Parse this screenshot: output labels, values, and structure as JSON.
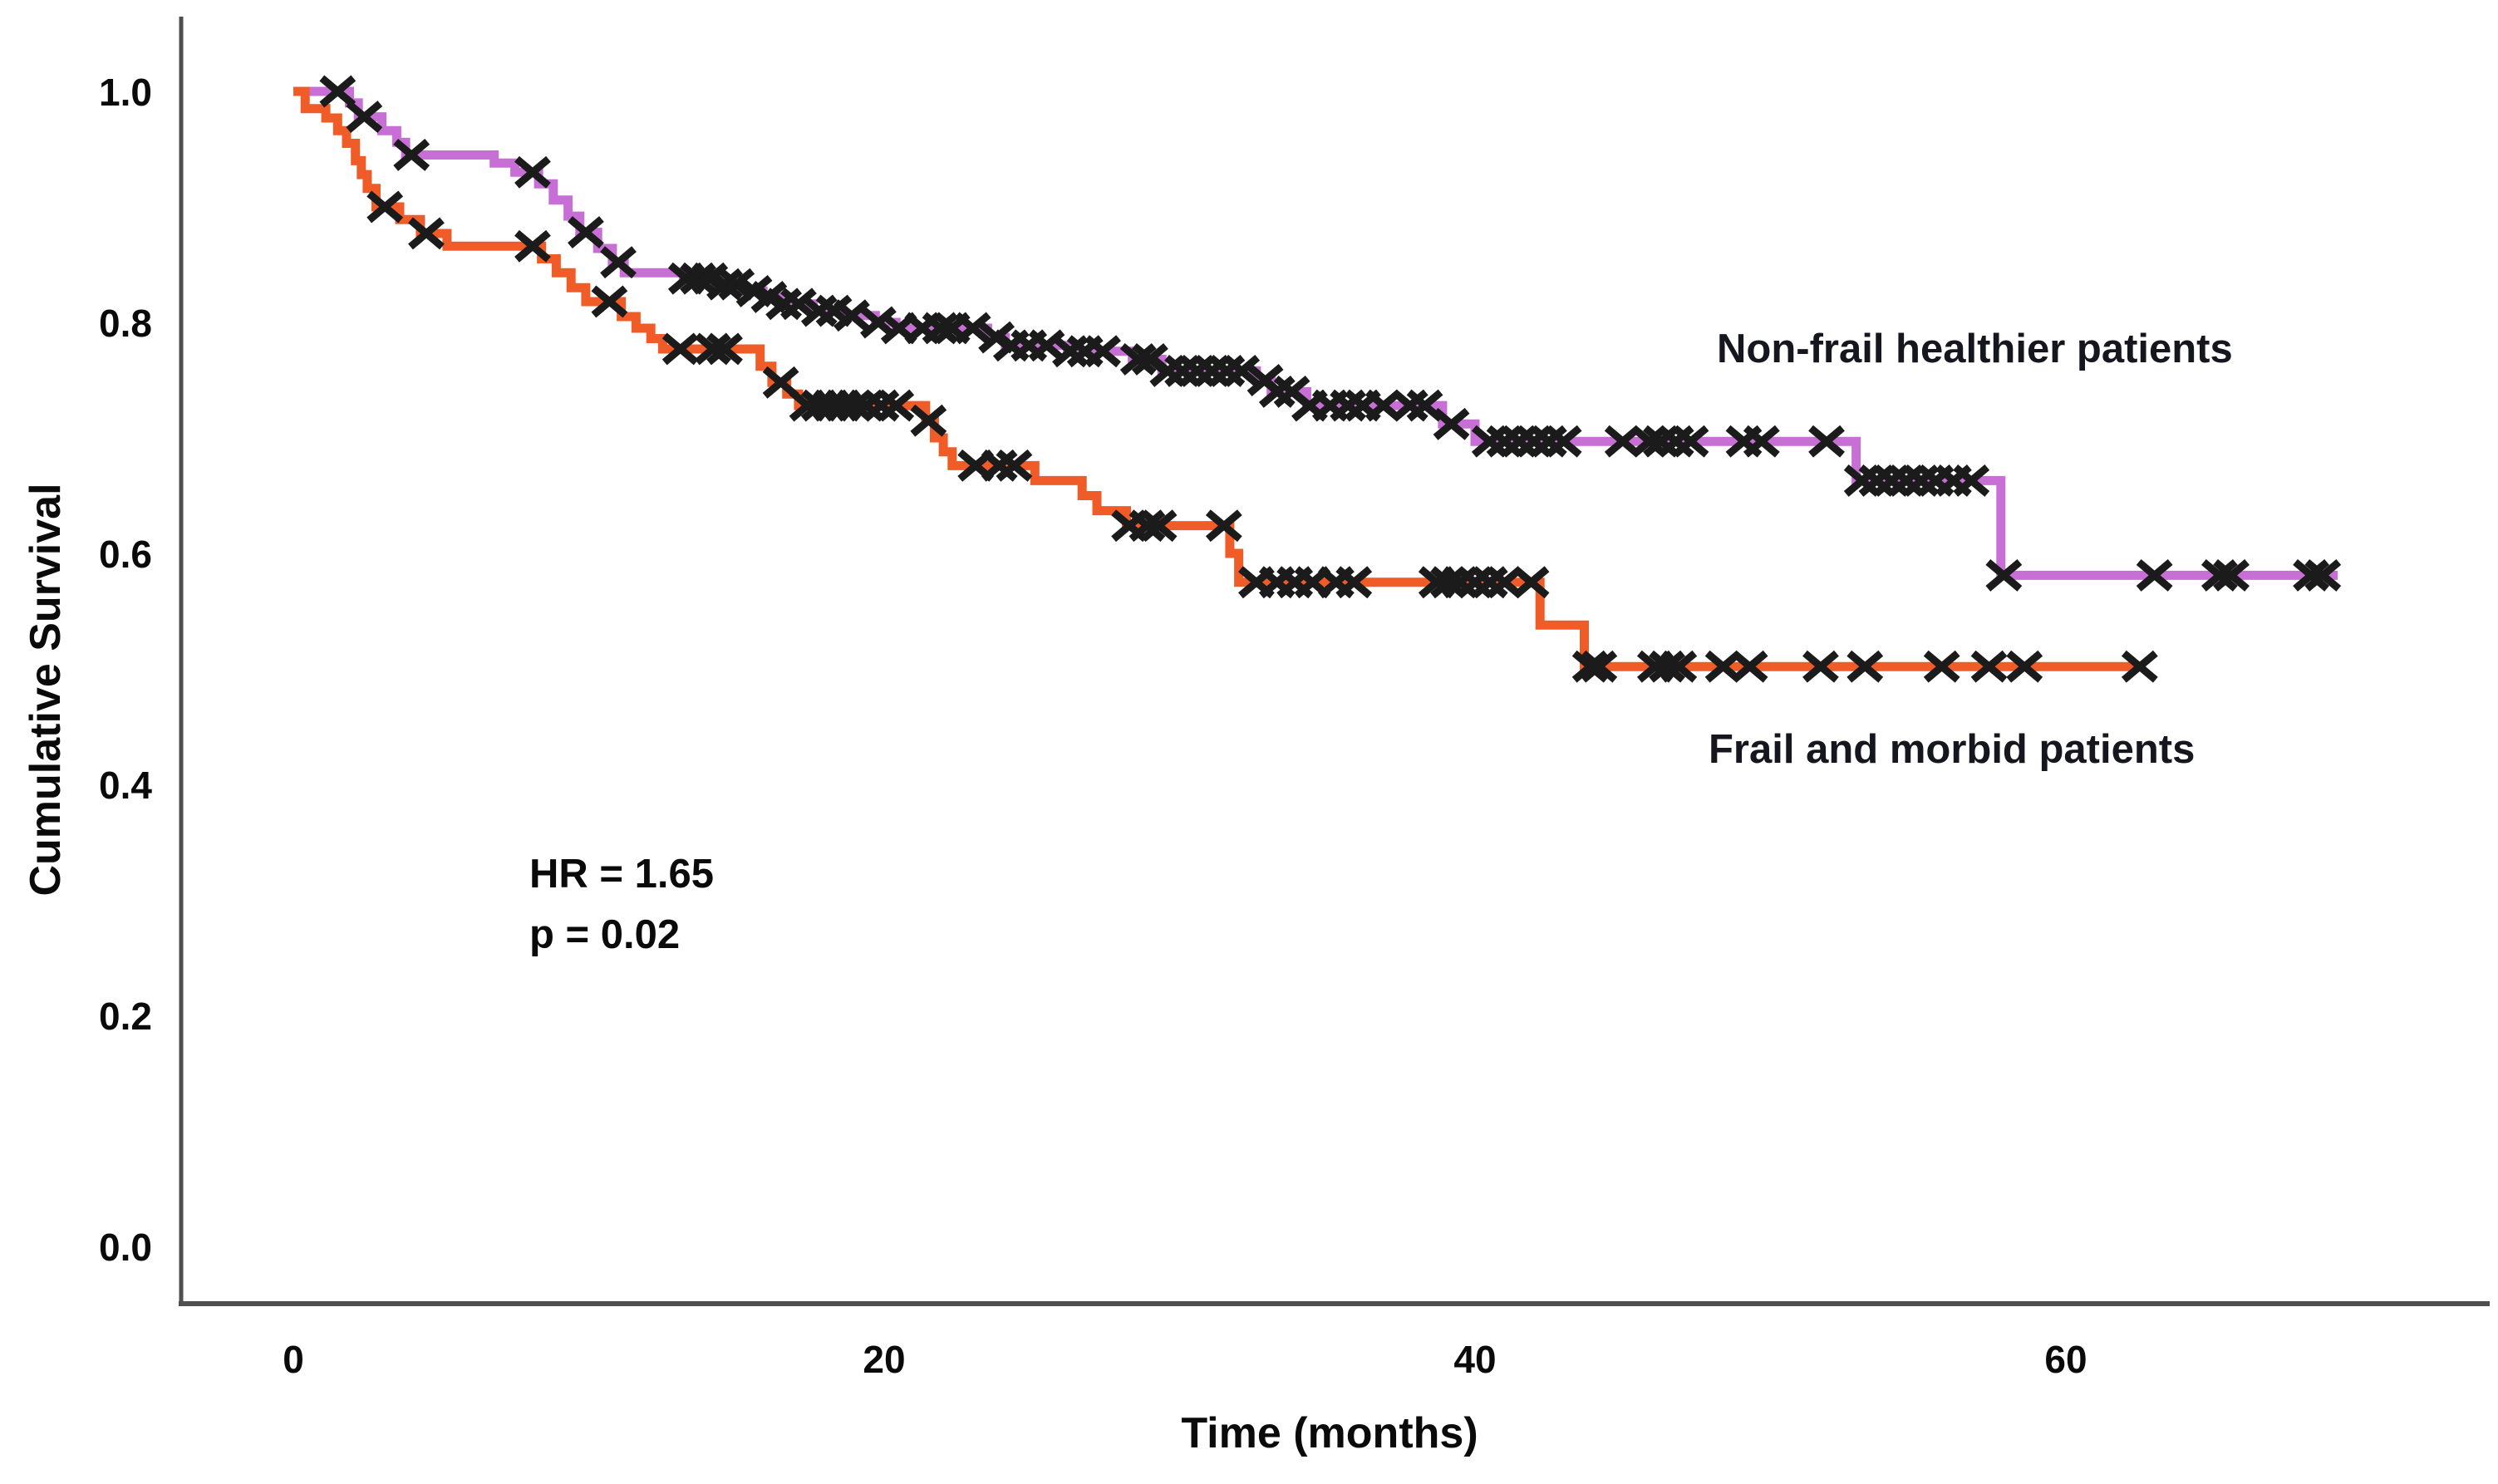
{
  "figure": {
    "y_axis_title": "Cumulative Survival",
    "x_axis_title": "Time (months)",
    "annotation": {
      "line1": "HR = 1.65",
      "line2": "p = 0.02"
    },
    "labels": {
      "nonfrail": "Non-frail healthier patients",
      "frail": "Frail and morbid patients"
    }
  },
  "colors": {
    "nonfrail_line": "#c86fd6",
    "frail_line": "#f05c28",
    "censor_mark": "#1b1b1b",
    "axis_line": "#4f4f4f",
    "tick_text": "#0a0a0a",
    "label_text": "#16161f"
  },
  "chart_data": {
    "type": "line",
    "subtype": "kaplan-meier-step",
    "title": "",
    "xlabel": "Time (months)",
    "ylabel": "Cumulative Survival",
    "xlim": [
      0,
      74
    ],
    "ylim": [
      0.0,
      1.0
    ],
    "grid": false,
    "legend_position": "labels-on-chart",
    "x_ticks": [
      {
        "v": 0,
        "label": "0"
      },
      {
        "v": 20,
        "label": "20"
      },
      {
        "v": 40,
        "label": "40"
      },
      {
        "v": 60,
        "label": "60"
      }
    ],
    "y_ticks": [
      {
        "v": 1.0,
        "label": "1.0"
      },
      {
        "v": 0.8,
        "label": "0.8"
      },
      {
        "v": 0.6,
        "label": "0.6"
      },
      {
        "v": 0.4,
        "label": "0.4"
      },
      {
        "v": 0.2,
        "label": "0.2"
      },
      {
        "v": 0.0,
        "label": "0.0"
      }
    ],
    "annotation": "HR = 1.65, p = 0.02",
    "series": [
      {
        "name": "Non-frail healthier patients",
        "color_key": "nonfrail_line",
        "steps": [
          [
            0,
            1.0
          ],
          [
            1.9,
            0.99
          ],
          [
            2.2,
            0.978
          ],
          [
            3.0,
            0.966
          ],
          [
            3.5,
            0.956
          ],
          [
            3.8,
            0.945
          ],
          [
            6.8,
            0.938
          ],
          [
            7.5,
            0.93
          ],
          [
            8.3,
            0.92
          ],
          [
            8.8,
            0.906
          ],
          [
            9.3,
            0.892
          ],
          [
            9.7,
            0.878
          ],
          [
            10.3,
            0.864
          ],
          [
            10.8,
            0.852
          ],
          [
            11.2,
            0.843
          ],
          [
            13.2,
            0.838
          ],
          [
            14.3,
            0.833
          ],
          [
            15.1,
            0.827
          ],
          [
            15.9,
            0.822
          ],
          [
            16.5,
            0.816
          ],
          [
            17.6,
            0.81
          ],
          [
            18.6,
            0.806
          ],
          [
            19.7,
            0.8
          ],
          [
            20.4,
            0.795
          ],
          [
            23.5,
            0.787
          ],
          [
            24.1,
            0.78
          ],
          [
            26.2,
            0.775
          ],
          [
            28.4,
            0.768
          ],
          [
            29.4,
            0.758
          ],
          [
            32.6,
            0.75
          ],
          [
            33.1,
            0.74
          ],
          [
            34.3,
            0.728
          ],
          [
            38.9,
            0.712
          ],
          [
            40.0,
            0.697
          ],
          [
            52.9,
            0.663
          ],
          [
            57.8,
            0.581
          ],
          [
            69.2,
            0.581
          ]
        ],
        "censors": [
          [
            1.5,
            1.0
          ],
          [
            2.4,
            0.978
          ],
          [
            4.0,
            0.945
          ],
          [
            8.1,
            0.93
          ],
          [
            9.9,
            0.878
          ],
          [
            11.0,
            0.852
          ],
          [
            13.3,
            0.838
          ],
          [
            13.7,
            0.838
          ],
          [
            14.1,
            0.838
          ],
          [
            14.6,
            0.833
          ],
          [
            15.0,
            0.833
          ],
          [
            15.6,
            0.827
          ],
          [
            16.1,
            0.822
          ],
          [
            16.6,
            0.816
          ],
          [
            17.1,
            0.816
          ],
          [
            17.8,
            0.81
          ],
          [
            18.3,
            0.81
          ],
          [
            18.9,
            0.806
          ],
          [
            19.8,
            0.8
          ],
          [
            20.5,
            0.795
          ],
          [
            21.3,
            0.795
          ],
          [
            21.9,
            0.795
          ],
          [
            22.3,
            0.795
          ],
          [
            23.0,
            0.795
          ],
          [
            23.8,
            0.787
          ],
          [
            24.3,
            0.78
          ],
          [
            24.9,
            0.78
          ],
          [
            25.5,
            0.78
          ],
          [
            26.3,
            0.775
          ],
          [
            26.8,
            0.775
          ],
          [
            27.4,
            0.775
          ],
          [
            28.6,
            0.768
          ],
          [
            29.0,
            0.768
          ],
          [
            29.6,
            0.758
          ],
          [
            30.1,
            0.758
          ],
          [
            30.6,
            0.758
          ],
          [
            31.1,
            0.758
          ],
          [
            31.6,
            0.758
          ],
          [
            32.1,
            0.758
          ],
          [
            32.9,
            0.75
          ],
          [
            33.3,
            0.74
          ],
          [
            33.8,
            0.74
          ],
          [
            34.4,
            0.728
          ],
          [
            35.1,
            0.728
          ],
          [
            35.7,
            0.728
          ],
          [
            36.2,
            0.728
          ],
          [
            36.9,
            0.728
          ],
          [
            37.8,
            0.728
          ],
          [
            38.3,
            0.728
          ],
          [
            39.2,
            0.712
          ],
          [
            40.5,
            0.697
          ],
          [
            41.0,
            0.697
          ],
          [
            41.5,
            0.697
          ],
          [
            42.0,
            0.697
          ],
          [
            42.5,
            0.697
          ],
          [
            43.0,
            0.697
          ],
          [
            45.0,
            0.697
          ],
          [
            45.9,
            0.697
          ],
          [
            46.3,
            0.697
          ],
          [
            46.8,
            0.697
          ],
          [
            47.3,
            0.697
          ],
          [
            49.1,
            0.697
          ],
          [
            49.7,
            0.697
          ],
          [
            51.9,
            0.697
          ],
          [
            53.1,
            0.663
          ],
          [
            53.6,
            0.663
          ],
          [
            54.1,
            0.663
          ],
          [
            54.6,
            0.663
          ],
          [
            55.1,
            0.663
          ],
          [
            55.6,
            0.663
          ],
          [
            56.2,
            0.663
          ],
          [
            56.8,
            0.663
          ],
          [
            57.9,
            0.581
          ],
          [
            63.0,
            0.581
          ],
          [
            65.2,
            0.581
          ],
          [
            65.6,
            0.581
          ],
          [
            68.3,
            0.581
          ],
          [
            68.7,
            0.581
          ]
        ]
      },
      {
        "name": "Frail and morbid patients",
        "color_key": "frail_line",
        "steps": [
          [
            0,
            1.0
          ],
          [
            0.4,
            0.985
          ],
          [
            1.1,
            0.977
          ],
          [
            1.5,
            0.966
          ],
          [
            1.8,
            0.955
          ],
          [
            2.1,
            0.94
          ],
          [
            2.3,
            0.928
          ],
          [
            2.5,
            0.916
          ],
          [
            2.8,
            0.9
          ],
          [
            3.6,
            0.889
          ],
          [
            4.3,
            0.877
          ],
          [
            5.2,
            0.866
          ],
          [
            8.4,
            0.855
          ],
          [
            8.9,
            0.843
          ],
          [
            9.4,
            0.83
          ],
          [
            9.9,
            0.818
          ],
          [
            11.1,
            0.805
          ],
          [
            11.6,
            0.795
          ],
          [
            12.1,
            0.786
          ],
          [
            12.5,
            0.777
          ],
          [
            15.8,
            0.762
          ],
          [
            16.2,
            0.748
          ],
          [
            16.7,
            0.738
          ],
          [
            17.1,
            0.728
          ],
          [
            21.4,
            0.715
          ],
          [
            21.7,
            0.7
          ],
          [
            22.0,
            0.688
          ],
          [
            22.3,
            0.676
          ],
          [
            25.1,
            0.663
          ],
          [
            26.7,
            0.65
          ],
          [
            27.2,
            0.637
          ],
          [
            28.2,
            0.624
          ],
          [
            31.7,
            0.6
          ],
          [
            32.0,
            0.575
          ],
          [
            42.2,
            0.538
          ],
          [
            43.7,
            0.502
          ],
          [
            62.6,
            0.502
          ]
        ],
        "censors": [
          [
            3.1,
            0.9
          ],
          [
            4.5,
            0.877
          ],
          [
            8.1,
            0.866
          ],
          [
            10.7,
            0.818
          ],
          [
            13.1,
            0.777
          ],
          [
            14.2,
            0.777
          ],
          [
            14.6,
            0.777
          ],
          [
            16.5,
            0.748
          ],
          [
            17.4,
            0.728
          ],
          [
            17.8,
            0.728
          ],
          [
            18.2,
            0.728
          ],
          [
            18.6,
            0.728
          ],
          [
            19.0,
            0.728
          ],
          [
            19.4,
            0.728
          ],
          [
            19.9,
            0.728
          ],
          [
            20.4,
            0.728
          ],
          [
            21.5,
            0.715
          ],
          [
            23.1,
            0.676
          ],
          [
            23.9,
            0.676
          ],
          [
            24.4,
            0.676
          ],
          [
            28.3,
            0.624
          ],
          [
            28.9,
            0.624
          ],
          [
            29.3,
            0.624
          ],
          [
            31.5,
            0.624
          ],
          [
            32.6,
            0.575
          ],
          [
            33.3,
            0.575
          ],
          [
            33.9,
            0.575
          ],
          [
            34.5,
            0.575
          ],
          [
            35.3,
            0.575
          ],
          [
            35.9,
            0.575
          ],
          [
            38.7,
            0.575
          ],
          [
            39.1,
            0.575
          ],
          [
            39.5,
            0.575
          ],
          [
            40.0,
            0.575
          ],
          [
            40.5,
            0.575
          ],
          [
            41.0,
            0.575
          ],
          [
            41.9,
            0.575
          ],
          [
            43.9,
            0.502
          ],
          [
            44.2,
            0.502
          ],
          [
            46.1,
            0.502
          ],
          [
            46.5,
            0.502
          ],
          [
            46.9,
            0.502
          ],
          [
            48.4,
            0.502
          ],
          [
            49.3,
            0.502
          ],
          [
            51.7,
            0.502
          ],
          [
            53.2,
            0.502
          ],
          [
            55.8,
            0.502
          ],
          [
            57.4,
            0.502
          ],
          [
            58.6,
            0.502
          ],
          [
            62.5,
            0.502
          ]
        ]
      }
    ]
  }
}
